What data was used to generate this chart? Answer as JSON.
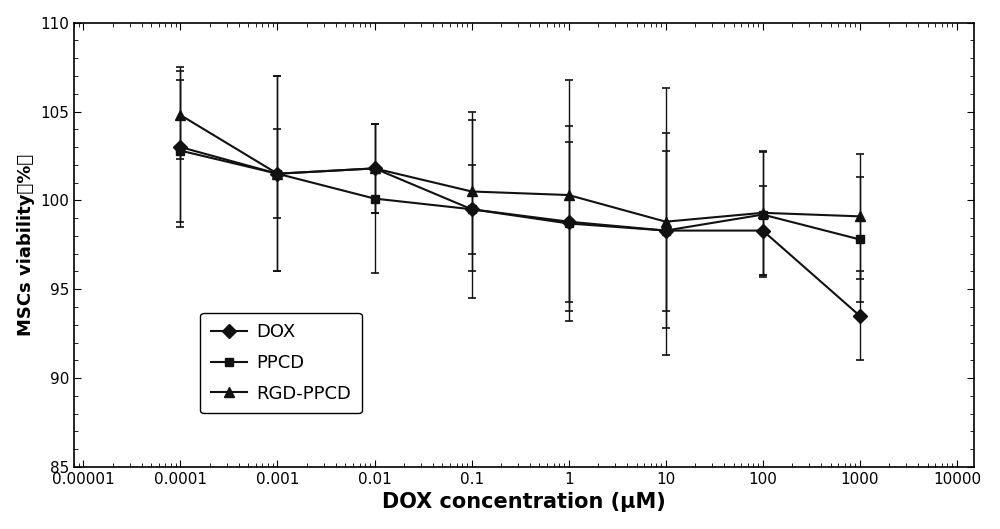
{
  "x_values": [
    0.0001,
    0.001,
    0.01,
    0.1,
    1,
    10,
    100,
    1000
  ],
  "DOX_y": [
    103.0,
    101.5,
    101.8,
    99.5,
    98.8,
    98.3,
    98.3,
    93.5
  ],
  "DOX_err": [
    4.5,
    5.5,
    2.5,
    2.5,
    4.5,
    4.5,
    2.5,
    2.5
  ],
  "PPCD_y": [
    102.8,
    101.5,
    100.1,
    99.5,
    98.7,
    98.3,
    99.2,
    97.8
  ],
  "PPCD_err": [
    4.0,
    5.5,
    4.2,
    5.0,
    5.5,
    5.5,
    3.5,
    3.5
  ],
  "RGD_y": [
    104.8,
    101.5,
    101.8,
    100.5,
    100.3,
    98.8,
    99.3,
    99.1
  ],
  "RGD_err": [
    2.5,
    2.5,
    2.5,
    4.5,
    6.5,
    7.5,
    3.5,
    3.5
  ],
  "xlim": [
    8e-06,
    15000
  ],
  "ylim": [
    85,
    110
  ],
  "yticks": [
    85,
    90,
    95,
    100,
    105,
    110
  ],
  "xticks": [
    1e-05,
    0.0001,
    0.001,
    0.01,
    0.1,
    1,
    10,
    100,
    1000,
    10000
  ],
  "xticklabels": [
    "0.00001",
    "0.0001",
    "0.001",
    "0.01",
    "0.1",
    "1",
    "10",
    "100",
    "1000",
    "10000"
  ],
  "xlabel": "DOX concentration (μM)",
  "ylabel": "MSCs viability（%）",
  "legend_labels": [
    "DOX",
    "PPCD",
    "RGD-PPCD"
  ],
  "line_color": "#111111",
  "bg_color": "#ffffff",
  "capsize": 3,
  "linewidth": 1.5,
  "markersize_diamond": 7,
  "markersize_square": 6,
  "markersize_triangle": 7,
  "legend_fontsize": 13,
  "tick_labelsize": 11,
  "xlabel_fontsize": 15,
  "ylabel_fontsize": 13
}
